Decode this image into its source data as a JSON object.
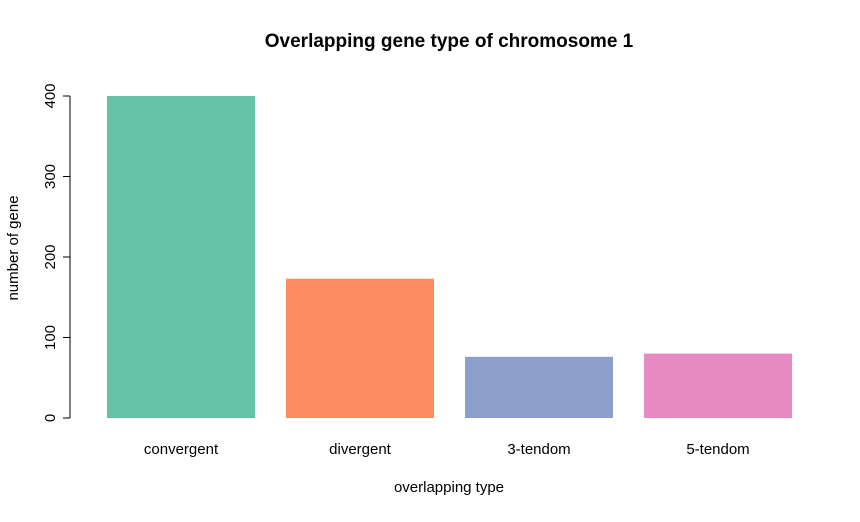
{
  "chart_data": {
    "type": "bar",
    "title": "Overlapping gene type of chromosome 1",
    "xlabel": "overlapping type",
    "ylabel": "number of gene",
    "categories": [
      "convergent",
      "divergent",
      "3-tendom",
      "5-tendom"
    ],
    "values": [
      400,
      173,
      76,
      80
    ],
    "colors": [
      "#66C2A5",
      "#FC8D62",
      "#8DA0CB",
      "#E78AC3"
    ],
    "ylim": [
      0,
      400
    ],
    "yticks": [
      0,
      100,
      200,
      300,
      400
    ],
    "grid": false,
    "legend": "none"
  }
}
